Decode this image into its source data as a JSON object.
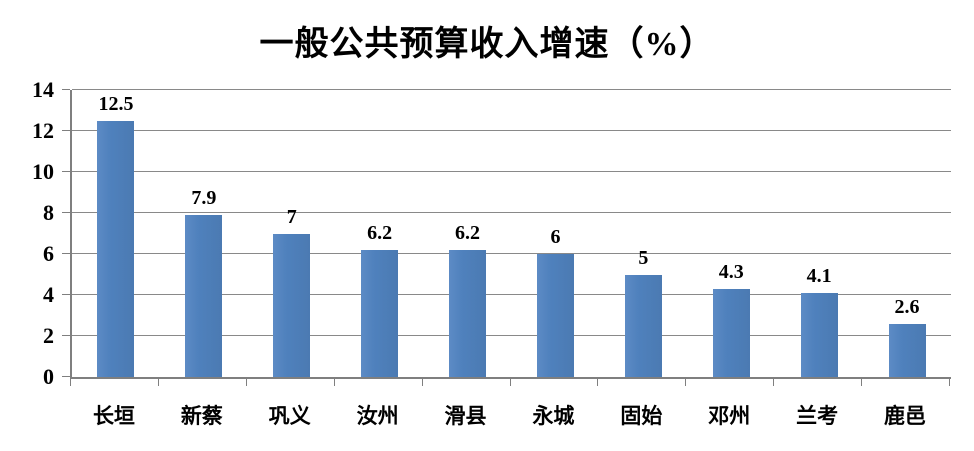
{
  "chart_data": {
    "type": "bar",
    "title": "一般公共预算收入增速（%）",
    "categories": [
      "长垣",
      "新蔡",
      "巩义",
      "汝州",
      "滑县",
      "永城",
      "固始",
      "邓州",
      "兰考",
      "鹿邑"
    ],
    "values": [
      12.5,
      7.9,
      7,
      6.2,
      6.2,
      6,
      5,
      4.3,
      4.1,
      2.6
    ],
    "data_labels": [
      "12.5",
      "7.9",
      "7",
      "6.2",
      "6.2",
      "6",
      "5",
      "4.3",
      "4.1",
      "2.6"
    ],
    "xlabel": "",
    "ylabel": "",
    "ylim": [
      0,
      14
    ],
    "yticks": [
      0,
      2,
      4,
      6,
      8,
      10,
      12,
      14
    ],
    "grid": "horizontal",
    "legend": "none",
    "colors": {
      "bar": "#4F81BD",
      "gridline": "#898989",
      "axis": "#7F7F7F",
      "text": "#000000",
      "background": "#FFFFFF"
    }
  }
}
